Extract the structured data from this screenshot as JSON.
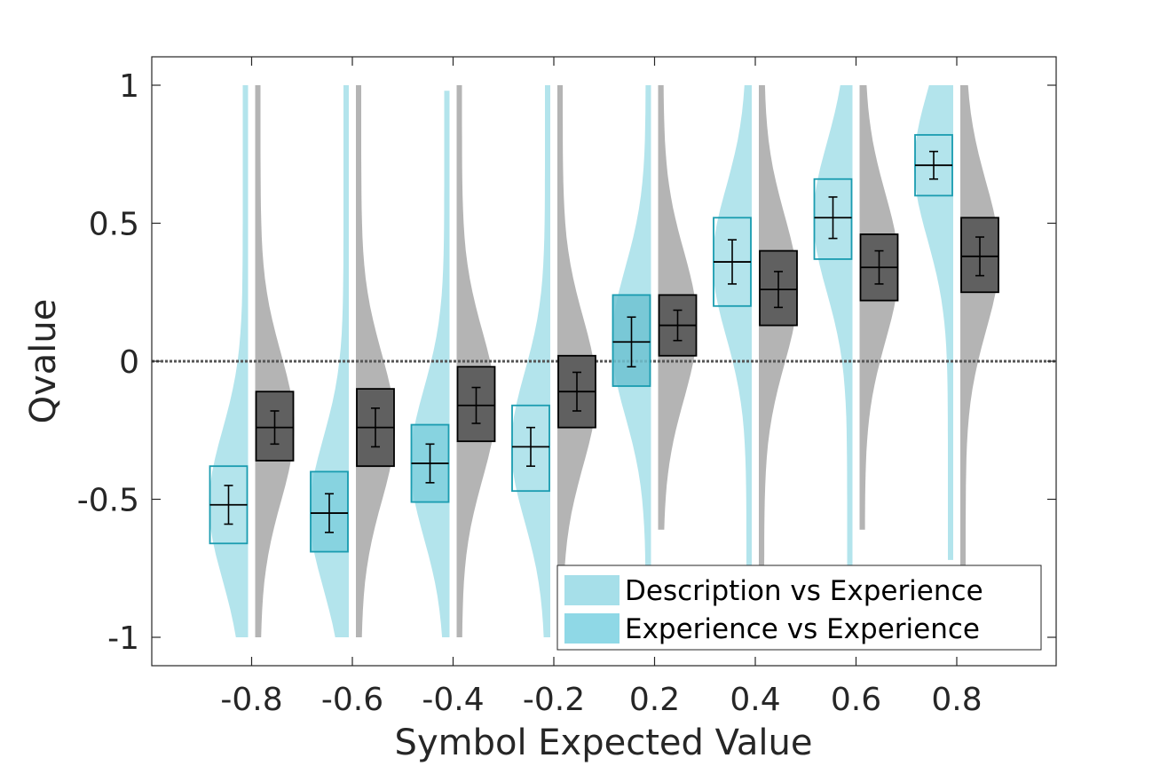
{
  "chart_data": {
    "type": "violin-box",
    "title": "",
    "xlabel": "Symbol Expected Value",
    "ylabel": "Qvalue",
    "ylim": [
      -1.1,
      1.1
    ],
    "yticks": [
      -1,
      -0.5,
      0,
      0.5,
      1
    ],
    "ytick_labels": [
      "-1",
      "-0.5",
      "0",
      "0.5",
      "1"
    ],
    "categories": [
      "-0.8",
      "-0.6",
      "-0.4",
      "-0.2",
      "0.2",
      "0.4",
      "0.6",
      "0.8"
    ],
    "reference_line": 0,
    "legend_position": "bottom-right",
    "grid": false,
    "series": [
      {
        "name": "Description vs Experience",
        "color": "#A6DFE9",
        "edge": "#1A9CB0",
        "box_fill": [
          "none",
          "#7FD0DE",
          "#7FD0DE",
          "none",
          "#6FC3D2",
          "none",
          "none",
          "none"
        ],
        "mean": [
          -0.52,
          -0.55,
          -0.37,
          -0.31,
          0.07,
          0.36,
          0.52,
          0.71
        ],
        "sem": [
          0.07,
          0.07,
          0.07,
          0.07,
          0.09,
          0.08,
          0.075,
          0.05
        ],
        "box_low": [
          -0.66,
          -0.69,
          -0.51,
          -0.47,
          -0.09,
          0.2,
          0.37,
          0.6
        ],
        "box_high": [
          -0.38,
          -0.4,
          -0.23,
          -0.16,
          0.24,
          0.52,
          0.66,
          0.82
        ],
        "violin_range": [
          [
            -1,
            1
          ],
          [
            -1,
            1
          ],
          [
            -1,
            0.98
          ],
          [
            -1,
            1
          ],
          [
            -1,
            1
          ],
          [
            -1,
            1
          ],
          [
            -1,
            1
          ],
          [
            -0.72,
            1
          ]
        ]
      },
      {
        "name": "Experience vs Experience",
        "color": "#B0B0B0",
        "edge": "#000000",
        "box_fill": "#606060",
        "mean": [
          -0.24,
          -0.24,
          -0.16,
          -0.11,
          0.13,
          0.26,
          0.34,
          0.38
        ],
        "sem": [
          0.06,
          0.07,
          0.065,
          0.07,
          0.055,
          0.065,
          0.06,
          0.07
        ],
        "box_low": [
          -0.36,
          -0.38,
          -0.29,
          -0.24,
          0.02,
          0.13,
          0.22,
          0.25
        ],
        "box_high": [
          -0.11,
          -0.1,
          -0.02,
          0.02,
          0.24,
          0.4,
          0.46,
          0.52
        ],
        "violin_range": [
          [
            -1,
            1
          ],
          [
            -1,
            1
          ],
          [
            -1,
            1
          ],
          [
            -1,
            1
          ],
          [
            -0.61,
            1
          ],
          [
            -1,
            1
          ],
          [
            -0.61,
            1
          ],
          [
            -1,
            1
          ]
        ]
      }
    ]
  }
}
